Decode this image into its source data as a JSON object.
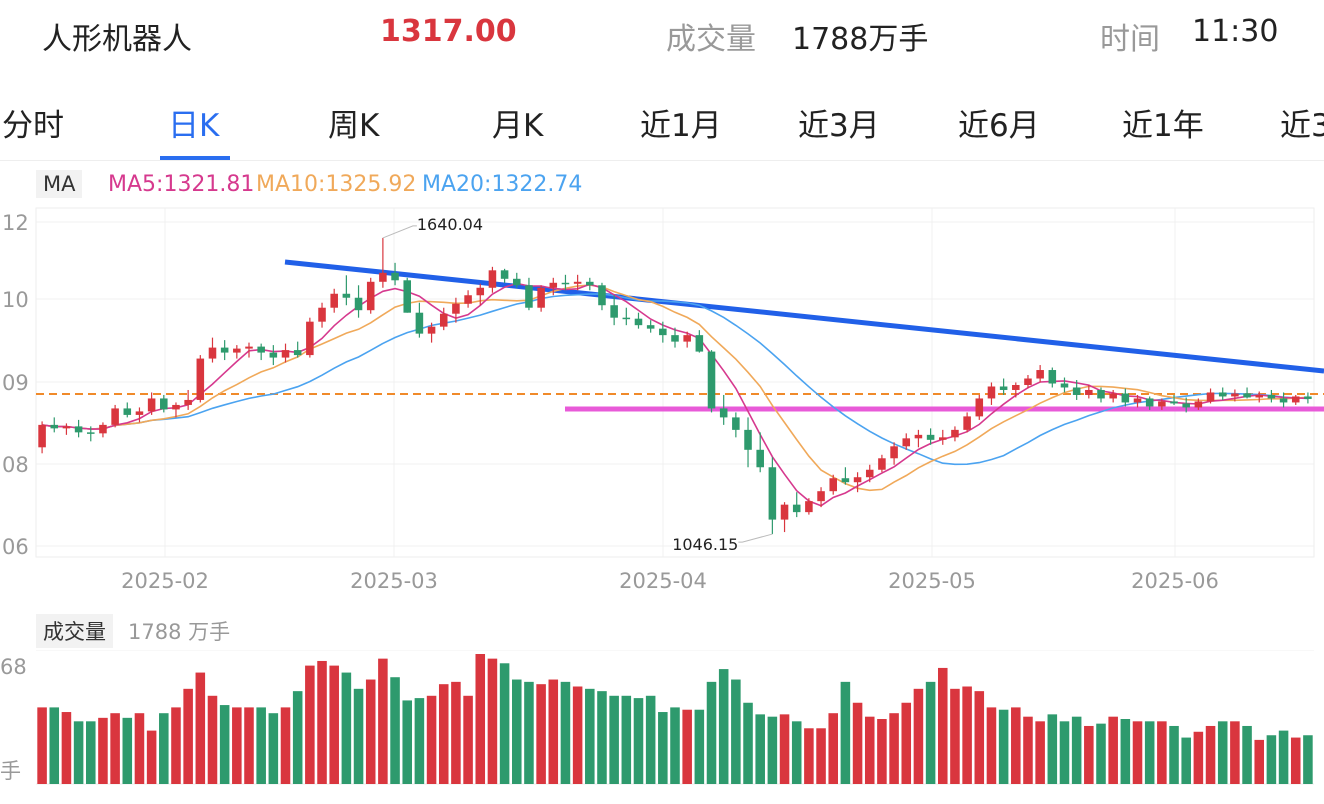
{
  "header": {
    "name": "人形机器人",
    "price": "1317.00",
    "volume_label": "成交量",
    "volume_value": "1788万手",
    "time_label": "时间",
    "time_value": "11:30"
  },
  "tabs": [
    "分时",
    "日K",
    "周K",
    "月K",
    "近1月",
    "近3月",
    "近6月",
    "近1年",
    "近3"
  ],
  "active_tab": 1,
  "legend": {
    "ma_tag": "MA",
    "ma5": "MA5:1321.81",
    "ma10": "MA10:1325.92",
    "ma20": "MA20:1322.74"
  },
  "volume_legend": {
    "tag": "成交量",
    "value": "1788 万手"
  },
  "colors": {
    "up": "#d9363e",
    "down": "#2e9a6d",
    "ma5": "#d6398e",
    "ma10": "#f0a95a",
    "ma20": "#4ba3f0",
    "trendline": "#2160e8",
    "support": "#e85ad8",
    "ref_line": "#f08a2a",
    "active_tab": "#2a6ef0",
    "price": "#d9363e"
  },
  "chart_data": {
    "type": "candlestick",
    "y_tick_labels": [
      "12",
      "10",
      "09",
      "08",
      "06"
    ],
    "x_tick_labels": [
      "2025-02",
      "2025-03",
      "2025-04",
      "2025-05",
      "2025-06"
    ],
    "annotations": {
      "high": "1640.04",
      "low": "1046.15"
    },
    "ohlc": [
      [
        1220,
        1272,
        1208,
        1265
      ],
      [
        1265,
        1280,
        1250,
        1258
      ],
      [
        1258,
        1268,
        1245,
        1262
      ],
      [
        1262,
        1275,
        1240,
        1250
      ],
      [
        1250,
        1262,
        1232,
        1248
      ],
      [
        1248,
        1270,
        1240,
        1265
      ],
      [
        1265,
        1305,
        1260,
        1298
      ],
      [
        1298,
        1310,
        1280,
        1285
      ],
      [
        1285,
        1300,
        1270,
        1292
      ],
      [
        1292,
        1330,
        1285,
        1318
      ],
      [
        1318,
        1325,
        1290,
        1296
      ],
      [
        1296,
        1310,
        1280,
        1305
      ],
      [
        1305,
        1335,
        1295,
        1315
      ],
      [
        1315,
        1405,
        1310,
        1398
      ],
      [
        1398,
        1440,
        1390,
        1420
      ],
      [
        1420,
        1435,
        1395,
        1410
      ],
      [
        1410,
        1425,
        1398,
        1418
      ],
      [
        1418,
        1430,
        1400,
        1422
      ],
      [
        1422,
        1428,
        1395,
        1410
      ],
      [
        1410,
        1425,
        1385,
        1400
      ],
      [
        1400,
        1428,
        1390,
        1415
      ],
      [
        1415,
        1432,
        1400,
        1405
      ],
      [
        1405,
        1480,
        1400,
        1472
      ],
      [
        1472,
        1510,
        1460,
        1500
      ],
      [
        1500,
        1538,
        1490,
        1528
      ],
      [
        1528,
        1565,
        1505,
        1520
      ],
      [
        1520,
        1545,
        1480,
        1495
      ],
      [
        1495,
        1560,
        1488,
        1552
      ],
      [
        1552,
        1640,
        1540,
        1570
      ],
      [
        1570,
        1590,
        1545,
        1555
      ],
      [
        1555,
        1560,
        1490,
        1490
      ],
      [
        1490,
        1510,
        1440,
        1448
      ],
      [
        1448,
        1470,
        1430,
        1462
      ],
      [
        1462,
        1500,
        1455,
        1488
      ],
      [
        1488,
        1520,
        1470,
        1508
      ],
      [
        1508,
        1535,
        1500,
        1525
      ],
      [
        1525,
        1548,
        1505,
        1540
      ],
      [
        1540,
        1582,
        1530,
        1575
      ],
      [
        1575,
        1578,
        1550,
        1558
      ],
      [
        1558,
        1570,
        1540,
        1545
      ],
      [
        1545,
        1560,
        1495,
        1500
      ],
      [
        1500,
        1545,
        1492,
        1540
      ],
      [
        1540,
        1560,
        1525,
        1550
      ],
      [
        1550,
        1566,
        1535,
        1548
      ],
      [
        1548,
        1566,
        1535,
        1552
      ],
      [
        1552,
        1560,
        1535,
        1545
      ],
      [
        1545,
        1550,
        1495,
        1505
      ],
      [
        1505,
        1525,
        1465,
        1480
      ],
      [
        1480,
        1500,
        1465,
        1478
      ],
      [
        1478,
        1490,
        1458,
        1465
      ],
      [
        1465,
        1475,
        1450,
        1458
      ],
      [
        1458,
        1472,
        1430,
        1445
      ],
      [
        1445,
        1460,
        1420,
        1432
      ],
      [
        1432,
        1452,
        1420,
        1445
      ],
      [
        1445,
        1455,
        1410,
        1412
      ],
      [
        1412,
        1415,
        1290,
        1298
      ],
      [
        1298,
        1325,
        1265,
        1280
      ],
      [
        1280,
        1290,
        1240,
        1255
      ],
      [
        1255,
        1280,
        1180,
        1215
      ],
      [
        1215,
        1250,
        1170,
        1180
      ],
      [
        1180,
        1200,
        1046,
        1075
      ],
      [
        1075,
        1110,
        1050,
        1105
      ],
      [
        1105,
        1130,
        1080,
        1090
      ],
      [
        1090,
        1118,
        1085,
        1112
      ],
      [
        1112,
        1140,
        1100,
        1132
      ],
      [
        1132,
        1165,
        1125,
        1158
      ],
      [
        1158,
        1180,
        1145,
        1150
      ],
      [
        1150,
        1170,
        1130,
        1160
      ],
      [
        1160,
        1185,
        1150,
        1175
      ],
      [
        1175,
        1205,
        1170,
        1198
      ],
      [
        1198,
        1230,
        1185,
        1222
      ],
      [
        1222,
        1248,
        1215,
        1238
      ],
      [
        1238,
        1255,
        1220,
        1245
      ],
      [
        1245,
        1258,
        1225,
        1235
      ],
      [
        1235,
        1255,
        1225,
        1240
      ],
      [
        1240,
        1262,
        1232,
        1255
      ],
      [
        1255,
        1290,
        1250,
        1282
      ],
      [
        1282,
        1325,
        1275,
        1318
      ],
      [
        1318,
        1350,
        1305,
        1342
      ],
      [
        1342,
        1358,
        1325,
        1335
      ],
      [
        1335,
        1350,
        1320,
        1345
      ],
      [
        1345,
        1365,
        1338,
        1358
      ],
      [
        1358,
        1385,
        1350,
        1375
      ],
      [
        1375,
        1380,
        1340,
        1348
      ],
      [
        1348,
        1360,
        1330,
        1340
      ],
      [
        1340,
        1355,
        1315,
        1325
      ],
      [
        1325,
        1345,
        1318,
        1335
      ],
      [
        1335,
        1340,
        1310,
        1318
      ],
      [
        1318,
        1335,
        1310,
        1328
      ],
      [
        1328,
        1338,
        1302,
        1310
      ],
      [
        1310,
        1325,
        1300,
        1318
      ],
      [
        1318,
        1322,
        1295,
        1302
      ],
      [
        1302,
        1318,
        1295,
        1312
      ],
      [
        1312,
        1325,
        1305,
        1308
      ],
      [
        1308,
        1320,
        1290,
        1300
      ],
      [
        1300,
        1318,
        1295,
        1312
      ],
      [
        1312,
        1338,
        1308,
        1330
      ],
      [
        1330,
        1340,
        1315,
        1322
      ],
      [
        1322,
        1336,
        1312,
        1328
      ],
      [
        1328,
        1340,
        1318,
        1320
      ],
      [
        1320,
        1332,
        1310,
        1325
      ],
      [
        1325,
        1335,
        1310,
        1318
      ],
      [
        1318,
        1330,
        1300,
        1310
      ],
      [
        1310,
        1325,
        1305,
        1322
      ],
      [
        1322,
        1330,
        1308,
        1317
      ]
    ],
    "volume_relative": [
      0.66,
      0.66,
      0.62,
      0.54,
      0.54,
      0.57,
      0.61,
      0.57,
      0.61,
      0.46,
      0.61,
      0.66,
      0.82,
      0.96,
      0.76,
      0.68,
      0.66,
      0.66,
      0.66,
      0.61,
      0.66,
      0.8,
      1.02,
      1.06,
      1.02,
      0.96,
      0.82,
      0.9,
      1.08,
      0.92,
      0.72,
      0.74,
      0.76,
      0.86,
      0.88,
      0.76,
      1.12,
      1.08,
      1.04,
      0.9,
      0.88,
      0.86,
      0.9,
      0.88,
      0.84,
      0.82,
      0.8,
      0.76,
      0.76,
      0.74,
      0.76,
      0.62,
      0.66,
      0.64,
      0.64,
      0.88,
      0.99,
      0.9,
      0.7,
      0.6,
      0.58,
      0.6,
      0.54,
      0.48,
      0.48,
      0.61,
      0.88,
      0.7,
      0.58,
      0.56,
      0.61,
      0.7,
      0.82,
      0.88,
      1.0,
      0.82,
      0.84,
      0.8,
      0.66,
      0.64,
      0.66,
      0.58,
      0.54,
      0.6,
      0.54,
      0.58,
      0.5,
      0.52,
      0.58,
      0.56,
      0.54,
      0.54,
      0.54,
      0.5,
      0.4,
      0.45,
      0.5,
      0.54,
      0.54,
      0.5,
      0.38,
      0.42,
      0.46,
      0.4,
      0.42
    ]
  }
}
